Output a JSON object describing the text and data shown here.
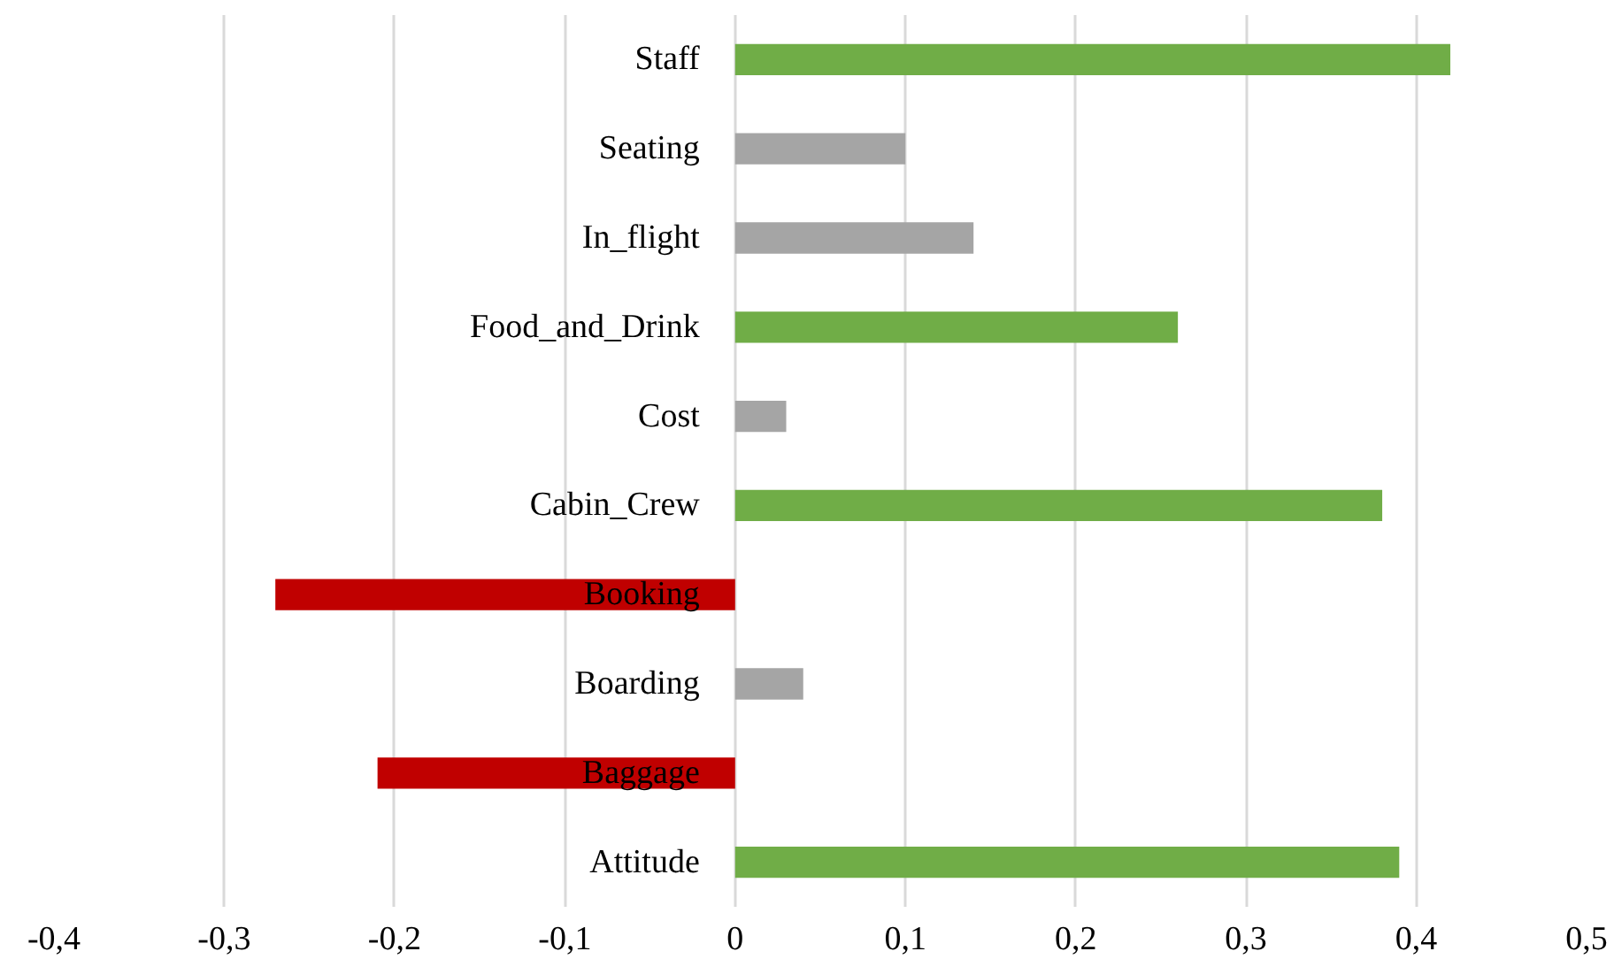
{
  "chart_data": {
    "type": "bar",
    "orientation": "horizontal",
    "categories": [
      "Staff",
      "Seating",
      "In_flight",
      "Food_and_Drink",
      "Cost",
      "Cabin_Crew",
      "Booking",
      "Boarding",
      "Baggage",
      "Attitude"
    ],
    "values": [
      0.42,
      0.1,
      0.14,
      0.26,
      0.03,
      0.38,
      -0.27,
      0.04,
      -0.21,
      0.39
    ],
    "colors": [
      "#70ad47",
      "#a5a5a5",
      "#a5a5a5",
      "#70ad47",
      "#a5a5a5",
      "#70ad47",
      "#c00000",
      "#a5a5a5",
      "#c00000",
      "#70ad47"
    ],
    "xlim": [
      -0.4,
      0.5
    ],
    "xticks": [
      {
        "value": -0.4,
        "label": "-0,4"
      },
      {
        "value": -0.3,
        "label": "-0,3"
      },
      {
        "value": -0.2,
        "label": "-0,2"
      },
      {
        "value": -0.1,
        "label": "-0,1"
      },
      {
        "value": 0,
        "label": "0"
      },
      {
        "value": 0.1,
        "label": "0,1"
      },
      {
        "value": 0.2,
        "label": "0,2"
      },
      {
        "value": 0.3,
        "label": "0,3"
      },
      {
        "value": 0.4,
        "label": "0,4"
      },
      {
        "value": 0.5,
        "label": "0,5"
      }
    ],
    "grid": "x"
  }
}
